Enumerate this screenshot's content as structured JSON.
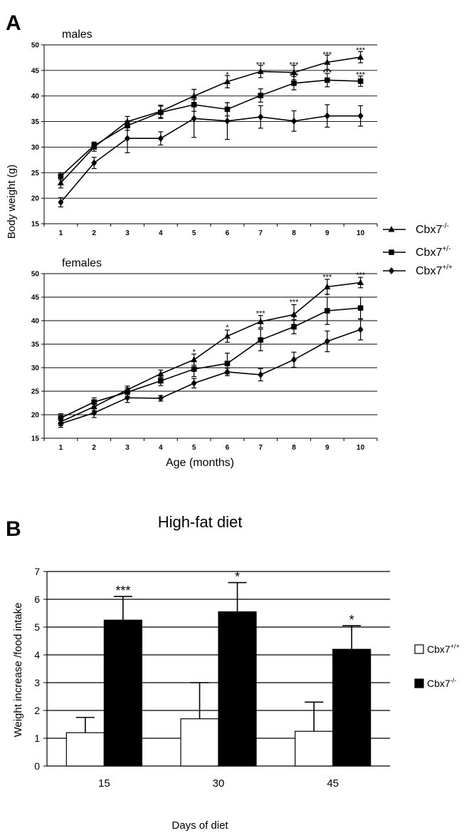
{
  "figure": {
    "panel_a_letter": "A",
    "panel_b_letter": "B",
    "shared_ylabel_a": "Body weight (g)",
    "shared_xlabel_a": "Age (months)"
  },
  "legend_a": [
    {
      "label": "Cbx7",
      "sup": "-/-",
      "marker": "triangle"
    },
    {
      "label": "Cbx7",
      "sup": "+/-",
      "marker": "square"
    },
    {
      "label": "Cbx7",
      "sup": "+/+",
      "marker": "diamond"
    }
  ],
  "legend_b": [
    {
      "label": "Cbx7",
      "sup": "+/+",
      "fill": "#ffffff"
    },
    {
      "label": "Cbx7",
      "sup": "-/-",
      "fill": "#000000"
    }
  ],
  "chart_data": [
    {
      "type": "line",
      "title": "males",
      "xlabel": "Age (months)",
      "ylabel": "Body weight (g)",
      "x": [
        1,
        2,
        3,
        4,
        5,
        6,
        7,
        8,
        9,
        10
      ],
      "xticks": [
        "1",
        "2",
        "3",
        "4",
        "5",
        "6",
        "7",
        "8",
        "9",
        "10"
      ],
      "ylim": [
        15,
        50
      ],
      "yticks": [
        15,
        20,
        25,
        30,
        35,
        40,
        45,
        50
      ],
      "grid": true,
      "series": [
        {
          "name": "Cbx7-/-",
          "marker": "triangle",
          "values": [
            23,
            30,
            35,
            37,
            40,
            42.8,
            44.8,
            44.6,
            46.6,
            47.6
          ],
          "errors": [
            1,
            0.8,
            1,
            1.2,
            1.3,
            1.2,
            1.2,
            1.4,
            1.4,
            1.1
          ]
        },
        {
          "name": "Cbx7+/-",
          "marker": "square",
          "values": [
            24.3,
            30.3,
            34.2,
            36.8,
            38.3,
            37.4,
            40.1,
            42.5,
            43.1,
            42.9
          ],
          "errors": [
            0.7,
            0.7,
            0.9,
            1.2,
            1.3,
            1.3,
            1.3,
            1.3,
            1.3,
            1
          ]
        },
        {
          "name": "Cbx7+/+",
          "marker": "diamond",
          "values": [
            19.2,
            26.9,
            31.7,
            31.7,
            35.6,
            35.1,
            35.9,
            35.1,
            36.1,
            36.1
          ],
          "errors": [
            0.9,
            1.1,
            2.8,
            1.3,
            3.7,
            3.6,
            2.2,
            2,
            2.2,
            2
          ]
        }
      ],
      "annotations": [
        {
          "x": 6,
          "y": 44.2,
          "text": "*"
        },
        {
          "x": 7,
          "y": 46.2,
          "text": "***"
        },
        {
          "x": 8,
          "y": 46.2,
          "text": "***"
        },
        {
          "x": 9,
          "y": 48.2,
          "text": "***"
        },
        {
          "x": 10,
          "y": 49.0,
          "text": "***"
        },
        {
          "x": 8,
          "y": 44.0,
          "text": "***"
        },
        {
          "x": 9,
          "y": 44.6,
          "text": "***"
        },
        {
          "x": 10,
          "y": 44.2,
          "text": "***"
        }
      ]
    },
    {
      "type": "line",
      "title": "females",
      "xlabel": "Age (months)",
      "ylabel": "Body weight (g)",
      "x": [
        1,
        2,
        3,
        4,
        5,
        6,
        7,
        8,
        9,
        10
      ],
      "xticks": [
        "1",
        "2",
        "3",
        "4",
        "5",
        "6",
        "7",
        "8",
        "9",
        "10"
      ],
      "ylim": [
        15,
        50
      ],
      "yticks": [
        15,
        20,
        25,
        30,
        35,
        40,
        45,
        50
      ],
      "grid": true,
      "series": [
        {
          "name": "Cbx7-/-",
          "marker": "triangle",
          "values": [
            18.5,
            21.7,
            25.3,
            28.7,
            31.7,
            36.7,
            39.8,
            41.3,
            47.2,
            48.1
          ],
          "errors": [
            0.8,
            0.8,
            0.8,
            0.8,
            1.2,
            1.3,
            1.3,
            2.1,
            1.6,
            1.1
          ]
        },
        {
          "name": "Cbx7+/-",
          "marker": "square",
          "values": [
            19.3,
            22.7,
            24.8,
            27.2,
            29.7,
            30.9,
            35.9,
            38.7,
            42.1,
            42.7
          ],
          "errors": [
            0.9,
            0.9,
            0.9,
            1,
            1.6,
            2.2,
            2.3,
            1.5,
            2.9,
            2.3
          ]
        },
        {
          "name": "Cbx7+/+",
          "marker": "diamond",
          "values": [
            18.1,
            20.4,
            23.6,
            23.5,
            26.7,
            29.1,
            28.5,
            31.7,
            35.6,
            38.1
          ],
          "errors": [
            0.8,
            1,
            1,
            0.6,
            1,
            0.8,
            1.3,
            1.6,
            2.2,
            2.2
          ]
        }
      ],
      "annotations": [
        {
          "x": 5,
          "y": 33.4,
          "text": "*"
        },
        {
          "x": 6,
          "y": 38.6,
          "text": "*"
        },
        {
          "x": 7,
          "y": 41.6,
          "text": "***"
        },
        {
          "x": 8,
          "y": 44.0,
          "text": "***"
        },
        {
          "x": 9,
          "y": 49.3,
          "text": "***"
        },
        {
          "x": 10,
          "y": 49.8,
          "text": "***"
        },
        {
          "x": 8,
          "y": 40.6,
          "text": "*"
        },
        {
          "x": 9,
          "y": 45.4,
          "text": "*"
        }
      ]
    },
    {
      "type": "bar",
      "title": "High-fat diet",
      "xlabel": "Days of diet",
      "ylabel": "Weight increase /food intake",
      "categories": [
        "15",
        "30",
        "45"
      ],
      "ylim": [
        0,
        7
      ],
      "yticks": [
        0,
        1,
        2,
        3,
        4,
        5,
        6,
        7
      ],
      "grid": true,
      "series": [
        {
          "name": "Cbx7+/+",
          "values": [
            1.2,
            1.7,
            1.25
          ],
          "errors": [
            0.55,
            1.3,
            1.05
          ]
        },
        {
          "name": "Cbx7-/-",
          "values": [
            5.25,
            5.55,
            4.2
          ],
          "errors": [
            0.85,
            1.05,
            0.85
          ]
        }
      ],
      "annotations": [
        {
          "category": "15",
          "series": "Cbx7-/-",
          "text": "***"
        },
        {
          "category": "30",
          "series": "Cbx7-/-",
          "text": "*"
        },
        {
          "category": "45",
          "series": "Cbx7-/-",
          "text": "*"
        }
      ]
    }
  ]
}
